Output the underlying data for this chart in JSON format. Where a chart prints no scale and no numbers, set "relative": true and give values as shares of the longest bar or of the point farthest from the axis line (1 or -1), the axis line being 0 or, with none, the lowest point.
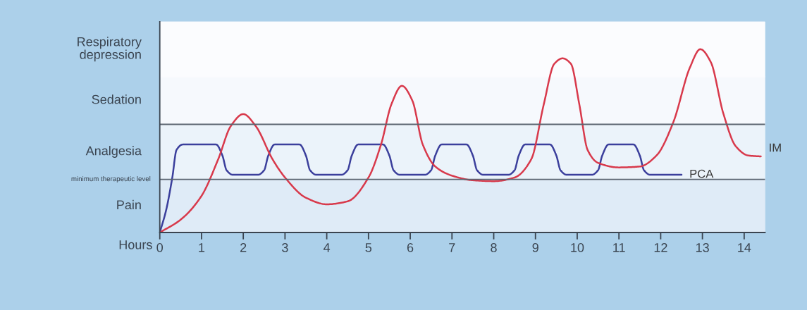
{
  "chart_data": {
    "type": "line",
    "relative": true,
    "xlabel": "Hours",
    "x": [
      0,
      0.15,
      0.3,
      0.4,
      0.55,
      1.35,
      1.5,
      1.6,
      1.75,
      2.35,
      2.5,
      2.6,
      2.75,
      3.35,
      3.5,
      3.6,
      3.75,
      4.35,
      4.5,
      4.6,
      4.75,
      5.35,
      5.5,
      5.6,
      5.75,
      6.35,
      6.5,
      6.6,
      6.75,
      7.35,
      7.5,
      7.6,
      7.75,
      8.35,
      8.5,
      8.6,
      8.75,
      9.35,
      9.5,
      9.6,
      9.75,
      10.35,
      10.5,
      10.6,
      10.75,
      11.35,
      11.5,
      11.6,
      11.75,
      12.5
    ],
    "xlim": [
      0,
      14.5
    ],
    "xticks": [
      0,
      1,
      2,
      3,
      4,
      5,
      6,
      7,
      8,
      9,
      10,
      11,
      12,
      13,
      14
    ],
    "series": [
      {
        "name": "PCA",
        "color": "#3b3f9c",
        "values": [
          0,
          0.12,
          0.3,
          0.45,
          0.48,
          0.48,
          0.42,
          0.34,
          0.315,
          0.315,
          0.34,
          0.42,
          0.48,
          0.48,
          0.42,
          0.34,
          0.315,
          0.315,
          0.34,
          0.42,
          0.48,
          0.48,
          0.42,
          0.34,
          0.315,
          0.315,
          0.34,
          0.42,
          0.48,
          0.48,
          0.42,
          0.34,
          0.315,
          0.315,
          0.34,
          0.42,
          0.48,
          0.48,
          0.42,
          0.34,
          0.315,
          0.315,
          0.34,
          0.42,
          0.48,
          0.48,
          0.42,
          0.34,
          0.315,
          0.315
        ]
      },
      {
        "name": "IM",
        "color": "#d8394b",
        "x": [
          0,
          0.5,
          1,
          1.4,
          1.7,
          2.0,
          2.3,
          2.7,
          3.0,
          3.5,
          4,
          4.5,
          5.0,
          5.3,
          5.55,
          5.8,
          6.05,
          6.3,
          6.6,
          7,
          7.5,
          8,
          8.5,
          8.9,
          9.2,
          9.45,
          9.65,
          9.85,
          10.05,
          10.25,
          10.5,
          11,
          11.5,
          11.9,
          12.3,
          12.7,
          12.95,
          13.2,
          13.5,
          13.8,
          14.1,
          14.4
        ],
        "values": [
          0,
          0.07,
          0.2,
          0.4,
          0.58,
          0.646,
          0.58,
          0.4,
          0.3,
          0.19,
          0.154,
          0.17,
          0.3,
          0.48,
          0.7,
          0.8,
          0.72,
          0.48,
          0.36,
          0.31,
          0.285,
          0.28,
          0.3,
          0.4,
          0.7,
          0.92,
          0.95,
          0.92,
          0.7,
          0.45,
          0.38,
          0.355,
          0.36,
          0.42,
          0.6,
          0.9,
          1.0,
          0.93,
          0.65,
          0.47,
          0.42,
          0.415
        ]
      }
    ],
    "ref_lines": [
      {
        "axis": "y",
        "value": 0.29,
        "label": "minimum therapeutic level",
        "color": "#5a6470"
      },
      {
        "axis": "y",
        "value": 0.59,
        "label": null,
        "color": "#5a6470"
      }
    ],
    "bands": [
      {
        "axis": "y",
        "from": 0,
        "to": 0.29,
        "label": "Pain",
        "color": "#dfebf7"
      },
      {
        "axis": "y",
        "from": 0.29,
        "to": 0.59,
        "label": "Analgesia",
        "color": "#ebf3fa"
      },
      {
        "axis": "y",
        "from": 0.59,
        "to": 0.85,
        "label": "Sedation",
        "color": "#f6f9fd"
      },
      {
        "axis": "y",
        "from": 0.85,
        "to": 1.15,
        "label": "Respiratory\ndepression",
        "color": "#fbfcfe"
      }
    ],
    "grid": false,
    "legend": false,
    "marker": "none",
    "line_style": "solid"
  }
}
